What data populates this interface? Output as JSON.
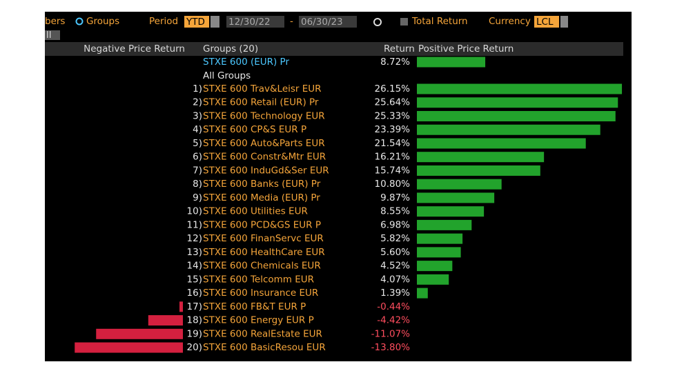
{
  "toolbar": {
    "view_partial": "bers",
    "view_option": "Groups",
    "period_label": "Period",
    "period": "YTD",
    "start_date": "12/30/22",
    "date_separator": "-",
    "end_date": "06/30/23",
    "total_return": "Total Return",
    "currency_label": "Currency",
    "currency": "LCL",
    "tab": "ll"
  },
  "header": {
    "negative": "Negative Price Return",
    "groups": "Groups (20)",
    "return": "Return",
    "positive": "Positive Price Return"
  },
  "index": {
    "name": "STXE 600 (EUR) Pr",
    "value": 8.72,
    "value_label": "8.72%"
  },
  "section": "All Groups",
  "rows": [
    {
      "rank": "1)",
      "name": "STXE 600 Trav&Leisr EUR",
      "value": 26.15,
      "value_label": "26.15%"
    },
    {
      "rank": "2)",
      "name": "STXE 600 Retail (EUR) Pr",
      "value": 25.64,
      "value_label": "25.64%"
    },
    {
      "rank": "3)",
      "name": "STXE 600 Technology EUR",
      "value": 25.33,
      "value_label": "25.33%"
    },
    {
      "rank": "4)",
      "name": "STXE 600 CP&S EUR P",
      "value": 23.39,
      "value_label": "23.39%"
    },
    {
      "rank": "5)",
      "name": "STXE 600 Auto&Parts EUR",
      "value": 21.54,
      "value_label": "21.54%"
    },
    {
      "rank": "6)",
      "name": "STXE 600 Constr&Mtr EUR",
      "value": 16.21,
      "value_label": "16.21%"
    },
    {
      "rank": "7)",
      "name": "STXE 600 InduGd&Ser EUR",
      "value": 15.74,
      "value_label": "15.74%"
    },
    {
      "rank": "8)",
      "name": "STXE 600 Banks (EUR) Pr",
      "value": 10.8,
      "value_label": "10.80%"
    },
    {
      "rank": "9)",
      "name": "STXE 600 Media (EUR) Pr",
      "value": 9.87,
      "value_label": "9.87%"
    },
    {
      "rank": "10)",
      "name": "STXE 600 Utilities EUR",
      "value": 8.55,
      "value_label": "8.55%"
    },
    {
      "rank": "11)",
      "name": "STXE 600 PCD&GS EUR P",
      "value": 6.98,
      "value_label": "6.98%"
    },
    {
      "rank": "12)",
      "name": "STXE 600 FinanServc EUR",
      "value": 5.82,
      "value_label": "5.82%"
    },
    {
      "rank": "13)",
      "name": "STXE 600 HealthCare EUR",
      "value": 5.6,
      "value_label": "5.60%"
    },
    {
      "rank": "14)",
      "name": "STXE 600 Chemicals EUR",
      "value": 4.52,
      "value_label": "4.52%"
    },
    {
      "rank": "15)",
      "name": "STXE 600 Telcomm EUR",
      "value": 4.07,
      "value_label": "4.07%"
    },
    {
      "rank": "16)",
      "name": "STXE 600 Insurance EUR",
      "value": 1.39,
      "value_label": "1.39%"
    },
    {
      "rank": "17)",
      "name": "STXE 600 FB&T EUR P",
      "value": -0.44,
      "value_label": "-0.44%"
    },
    {
      "rank": "18)",
      "name": "STXE 600 Energy EUR P",
      "value": -4.42,
      "value_label": "-4.42%"
    },
    {
      "rank": "19)",
      "name": "STXE 600 RealEstate EUR",
      "value": -11.07,
      "value_label": "-11.07%"
    },
    {
      "rank": "20)",
      "name": "STXE 600 BasicResou EUR",
      "value": -13.8,
      "value_label": "-13.80%"
    }
  ]
}
